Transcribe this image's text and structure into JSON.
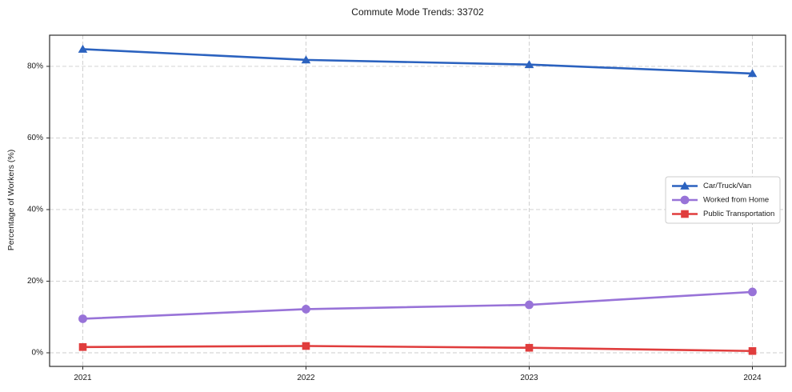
{
  "title": "Commute Mode Trends: 33702",
  "chart_data": {
    "type": "line",
    "title": "Commute Mode Trends: 33702",
    "xlabel": "",
    "ylabel": "Percentage of Workers (%)",
    "x": [
      2021,
      2022,
      2023,
      2024
    ],
    "x_tick_labels": [
      "2021",
      "2022",
      "2023",
      "2024"
    ],
    "series": [
      {
        "name": "Car/Truck/Van",
        "marker": "triangle",
        "color": "#2b62bf",
        "values": [
          84.8,
          81.8,
          80.5,
          78.0
        ]
      },
      {
        "name": "Worked from Home",
        "marker": "circle",
        "color": "#9873d8",
        "values": [
          9.5,
          12.2,
          13.4,
          17.0
        ]
      },
      {
        "name": "Public Transportation",
        "marker": "square",
        "color": "#e03d3d",
        "values": [
          1.6,
          1.9,
          1.4,
          0.5
        ]
      }
    ],
    "yticks": [
      0,
      20,
      40,
      60,
      80
    ],
    "ytick_labels": [
      "0%",
      "20%",
      "40%",
      "60%",
      "80%"
    ],
    "ylim": [
      -3.8,
      88.7
    ],
    "grid": true,
    "grid_style": "dashed",
    "legend_position": "center-right"
  },
  "colors": {
    "grid": "#cccccc",
    "spine": "#2b2b2b",
    "tick_text": "#1a1a1a",
    "legend_border": "#cccccc",
    "legend_bg": "#ffffff",
    "background": "#ffffff"
  }
}
